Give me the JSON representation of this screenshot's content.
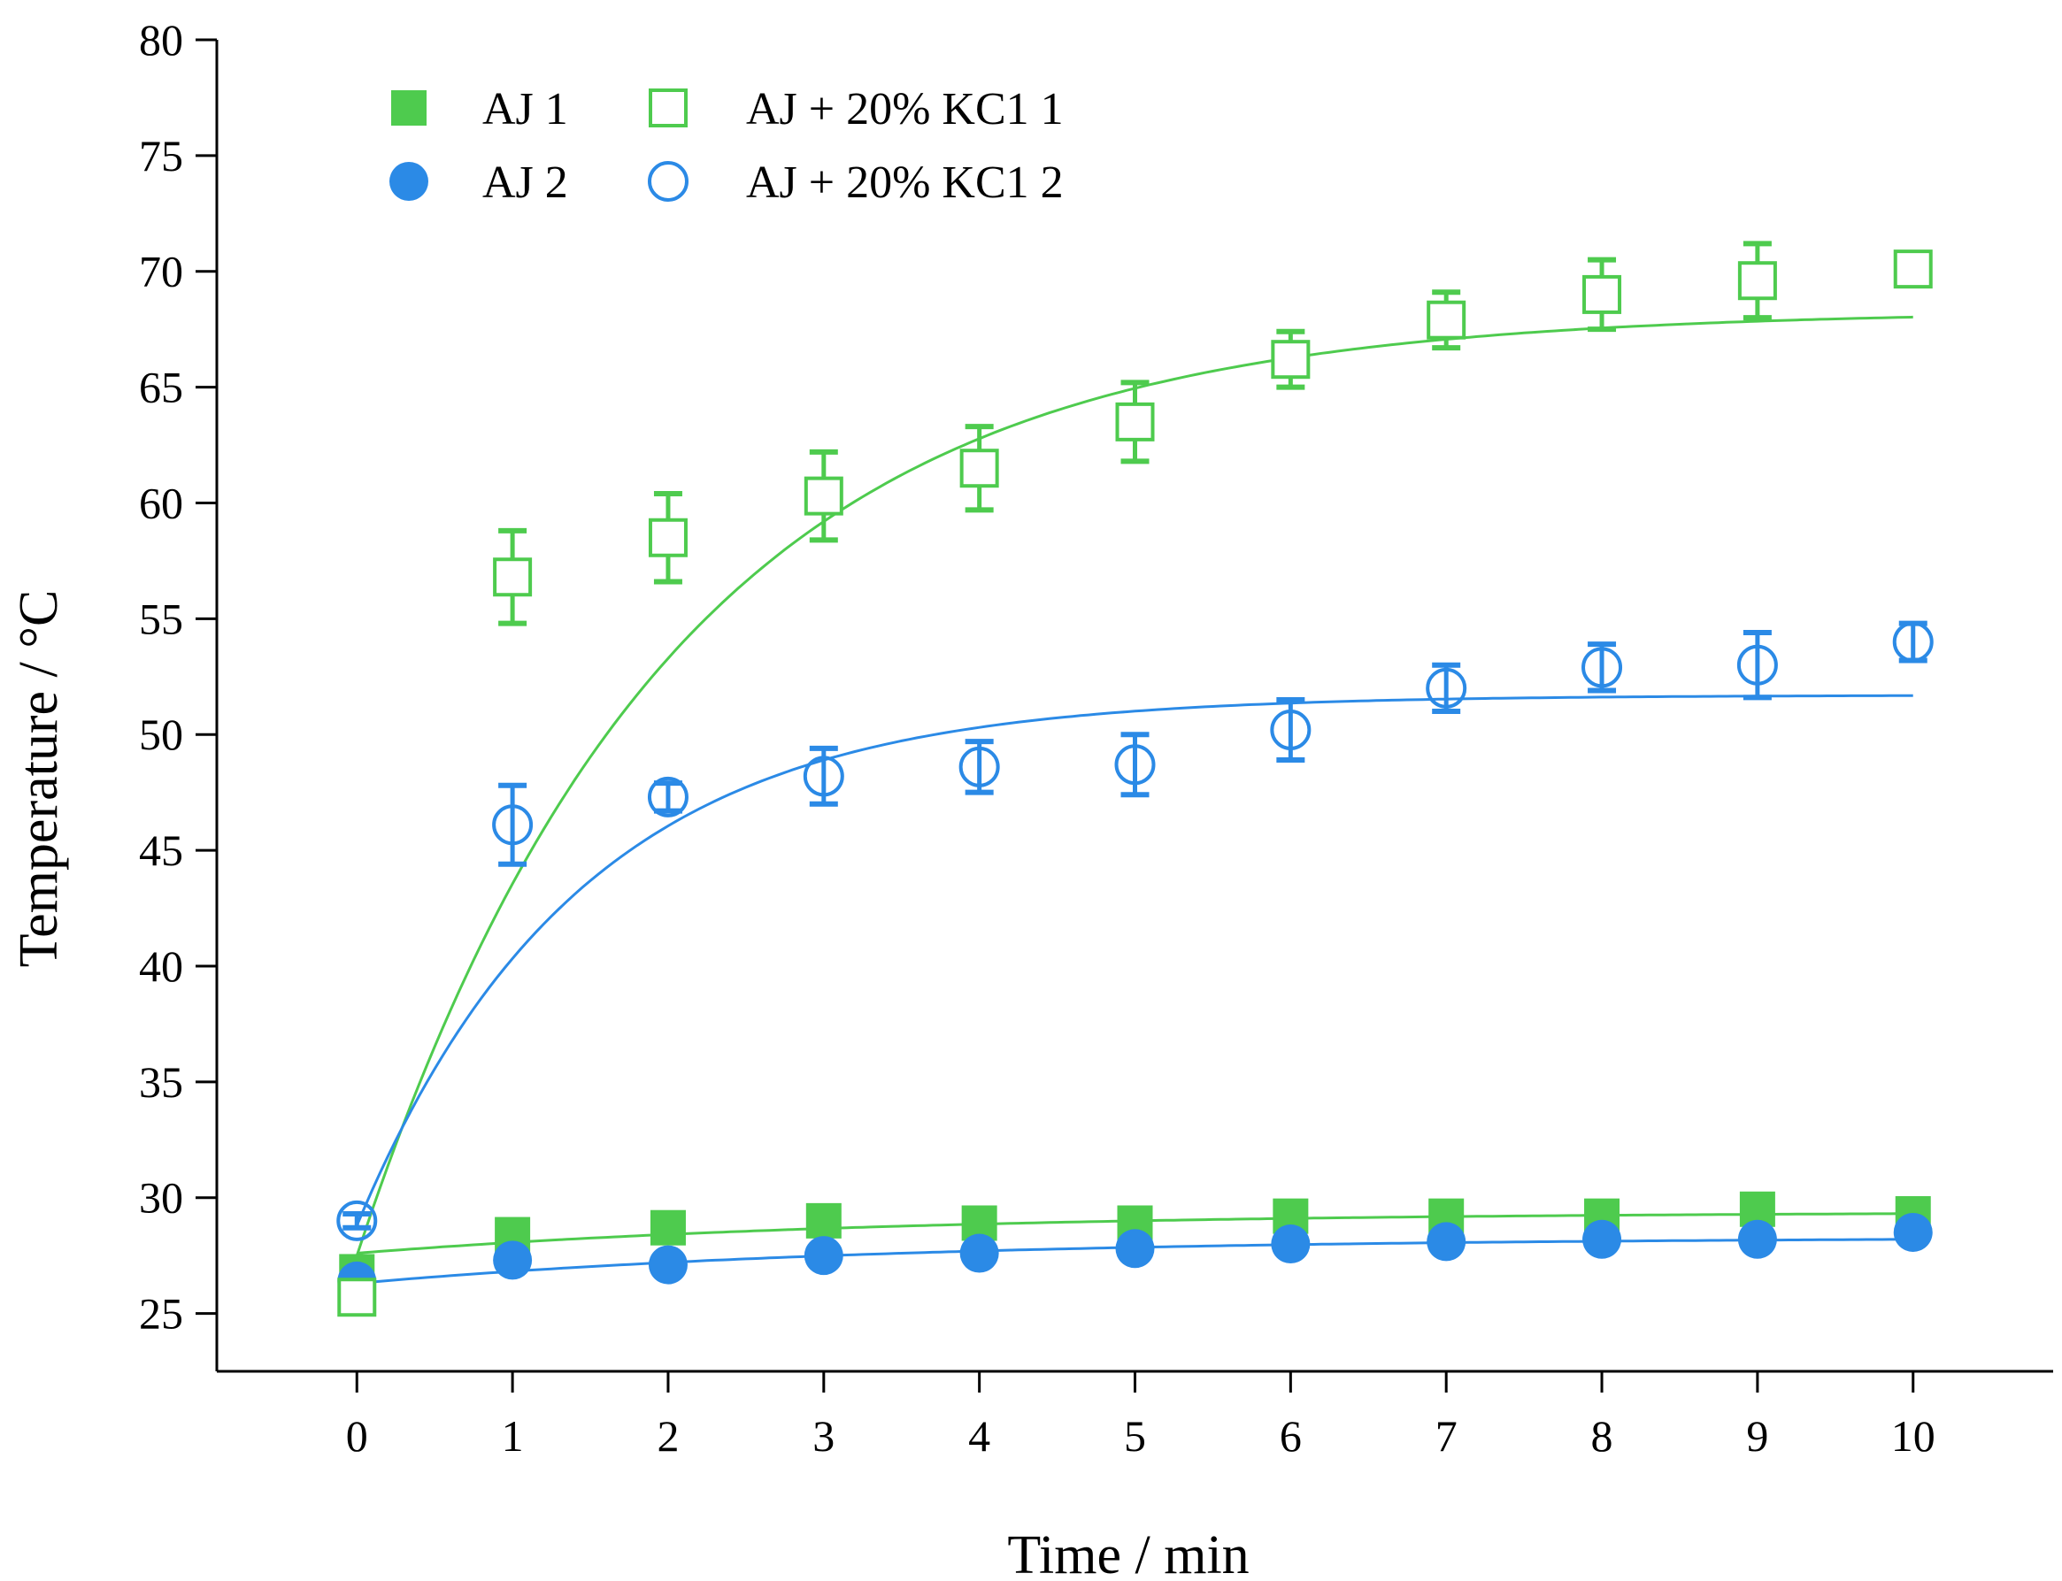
{
  "chart_data": {
    "type": "scatter",
    "title": "",
    "xlabel": "Time / min",
    "ylabel": "Temperature / °C",
    "xlim": [
      -0.9,
      10.9
    ],
    "ylim": [
      22.5,
      80
    ],
    "x_ticks": [
      0,
      1,
      2,
      3,
      4,
      5,
      6,
      7,
      8,
      9,
      10
    ],
    "y_ticks": [
      25,
      30,
      35,
      40,
      45,
      50,
      55,
      60,
      65,
      70,
      75,
      80
    ],
    "legend_position": "top-left",
    "x": [
      0,
      1,
      2,
      3,
      4,
      5,
      6,
      7,
      8,
      9,
      10
    ],
    "series": [
      {
        "name": "AJ 1",
        "marker": "filled-square",
        "color": "#4ecb4e",
        "values": [
          26.8,
          28.4,
          28.7,
          29.0,
          28.9,
          28.9,
          29.2,
          29.2,
          29.2,
          29.5,
          29.3
        ],
        "errors": [
          0.3,
          0.2,
          0.2,
          0.2,
          0.2,
          0.2,
          0.2,
          0.2,
          0.2,
          0.2,
          0.2
        ],
        "fit": {
          "start": 27.6,
          "plateau": 29.4,
          "rate": 0.3
        }
      },
      {
        "name": "AJ 2",
        "marker": "filled-circle",
        "color": "#2b8ae6",
        "values": [
          26.4,
          27.3,
          27.1,
          27.5,
          27.6,
          27.8,
          28.0,
          28.1,
          28.2,
          28.2,
          28.5
        ],
        "errors": [
          0.4,
          0.2,
          0.2,
          0.2,
          0.2,
          0.2,
          0.2,
          0.2,
          0.2,
          0.2,
          0.2
        ],
        "fit": {
          "start": 26.3,
          "plateau": 28.3,
          "rate": 0.3
        }
      },
      {
        "name": "AJ + 20% KC1 1",
        "marker": "open-square",
        "color": "#4ecb4e",
        "values": [
          25.7,
          56.8,
          58.5,
          60.3,
          61.5,
          63.5,
          66.2,
          67.9,
          69.0,
          69.6,
          70.1
        ],
        "errors": [
          0.5,
          2.0,
          1.9,
          1.9,
          1.8,
          1.7,
          1.2,
          1.2,
          1.5,
          1.6,
          0.6
        ],
        "fit": {
          "start": 27.5,
          "plateau": 68.3,
          "rate": 0.5
        }
      },
      {
        "name": "AJ + 20% KC1 2",
        "marker": "open-circle",
        "color": "#2b8ae6",
        "values": [
          29.0,
          46.1,
          47.3,
          48.2,
          48.6,
          48.7,
          50.2,
          52.0,
          52.9,
          53.0,
          54.0
        ],
        "errors": [
          0.3,
          1.7,
          0.6,
          1.2,
          1.1,
          1.3,
          1.3,
          1.0,
          1.0,
          1.4,
          0.8
        ],
        "fit": {
          "start": 28.8,
          "plateau": 51.7,
          "rate": 0.7
        }
      }
    ]
  }
}
